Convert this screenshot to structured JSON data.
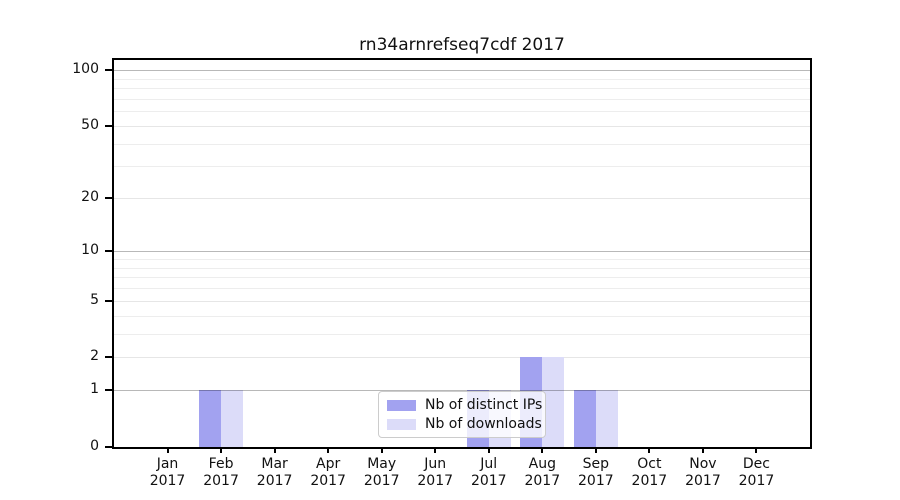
{
  "title": "rn34arnrefseq7cdf 2017",
  "chart_data": {
    "type": "bar",
    "title": "rn34arnrefseq7cdf 2017",
    "categories": [
      "Jan",
      "Feb",
      "Mar",
      "Apr",
      "May",
      "Jun",
      "Jul",
      "Aug",
      "Sep",
      "Oct",
      "Nov",
      "Dec"
    ],
    "x_tick_year": "2017",
    "series": [
      {
        "key": "distinct-ips",
        "name": "Nb of distinct IPs",
        "color": "#a2a2f0",
        "values": [
          0,
          1,
          0,
          0,
          0,
          0,
          1,
          2,
          1,
          0,
          0,
          0
        ]
      },
      {
        "key": "downloads",
        "name": "Nb of downloads",
        "color": "#dcdcf9",
        "values": [
          0,
          1,
          0,
          0,
          0,
          0,
          1,
          2,
          1,
          0,
          0,
          0
        ]
      }
    ],
    "y_scale": "log10(1+v)",
    "ylim": [
      0,
      115
    ],
    "y_tick_values": [
      0,
      1,
      2,
      5,
      10,
      20,
      50,
      100
    ],
    "y_tick_labels": [
      "0",
      "1",
      "2",
      "5",
      "10",
      "20",
      "50",
      "100"
    ],
    "y_major_gridlines": [
      1,
      10,
      100
    ],
    "y_labeled_minor_gridlines": [
      2,
      5,
      20,
      50
    ],
    "y_minor_gridlines": [
      3,
      4,
      6,
      7,
      8,
      9,
      30,
      40,
      60,
      70,
      80,
      90
    ],
    "grid": "horizontal-only",
    "legend_position": "lower center",
    "legend_entries": [
      "Nb of distinct IPs",
      "Nb of downloads"
    ]
  }
}
